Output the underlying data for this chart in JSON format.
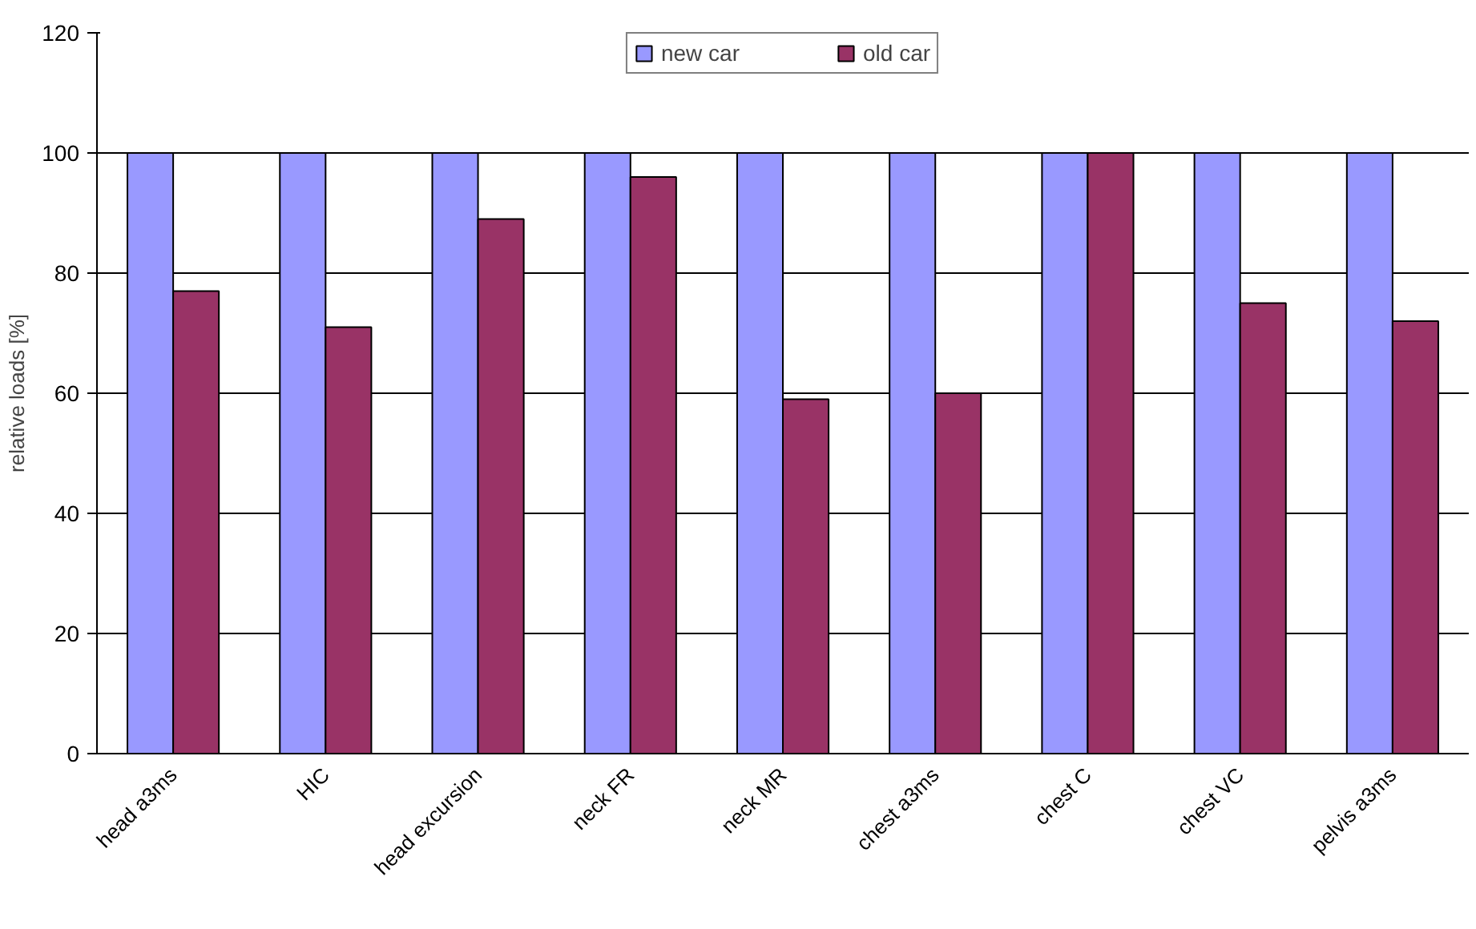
{
  "chart_data": {
    "type": "bar",
    "ylabel": "relative loads [%]",
    "categories": [
      "head a3ms",
      "HIC",
      "head excursion",
      "neck FR",
      "neck MR",
      "chest a3ms",
      "chest C",
      "chest VC",
      "pelvis a3ms"
    ],
    "series": [
      {
        "name": "new car",
        "color": "#9999ff",
        "values": [
          100,
          100,
          100,
          100,
          100,
          100,
          100,
          100,
          100
        ]
      },
      {
        "name": "old car",
        "color": "#993366",
        "values": [
          77,
          71,
          89,
          96,
          59,
          60,
          100,
          75,
          72
        ]
      }
    ],
    "ylim": [
      0,
      120
    ],
    "yticks": [
      0,
      20,
      40,
      60,
      80,
      100,
      120
    ],
    "grid": "y",
    "legend": "top"
  }
}
